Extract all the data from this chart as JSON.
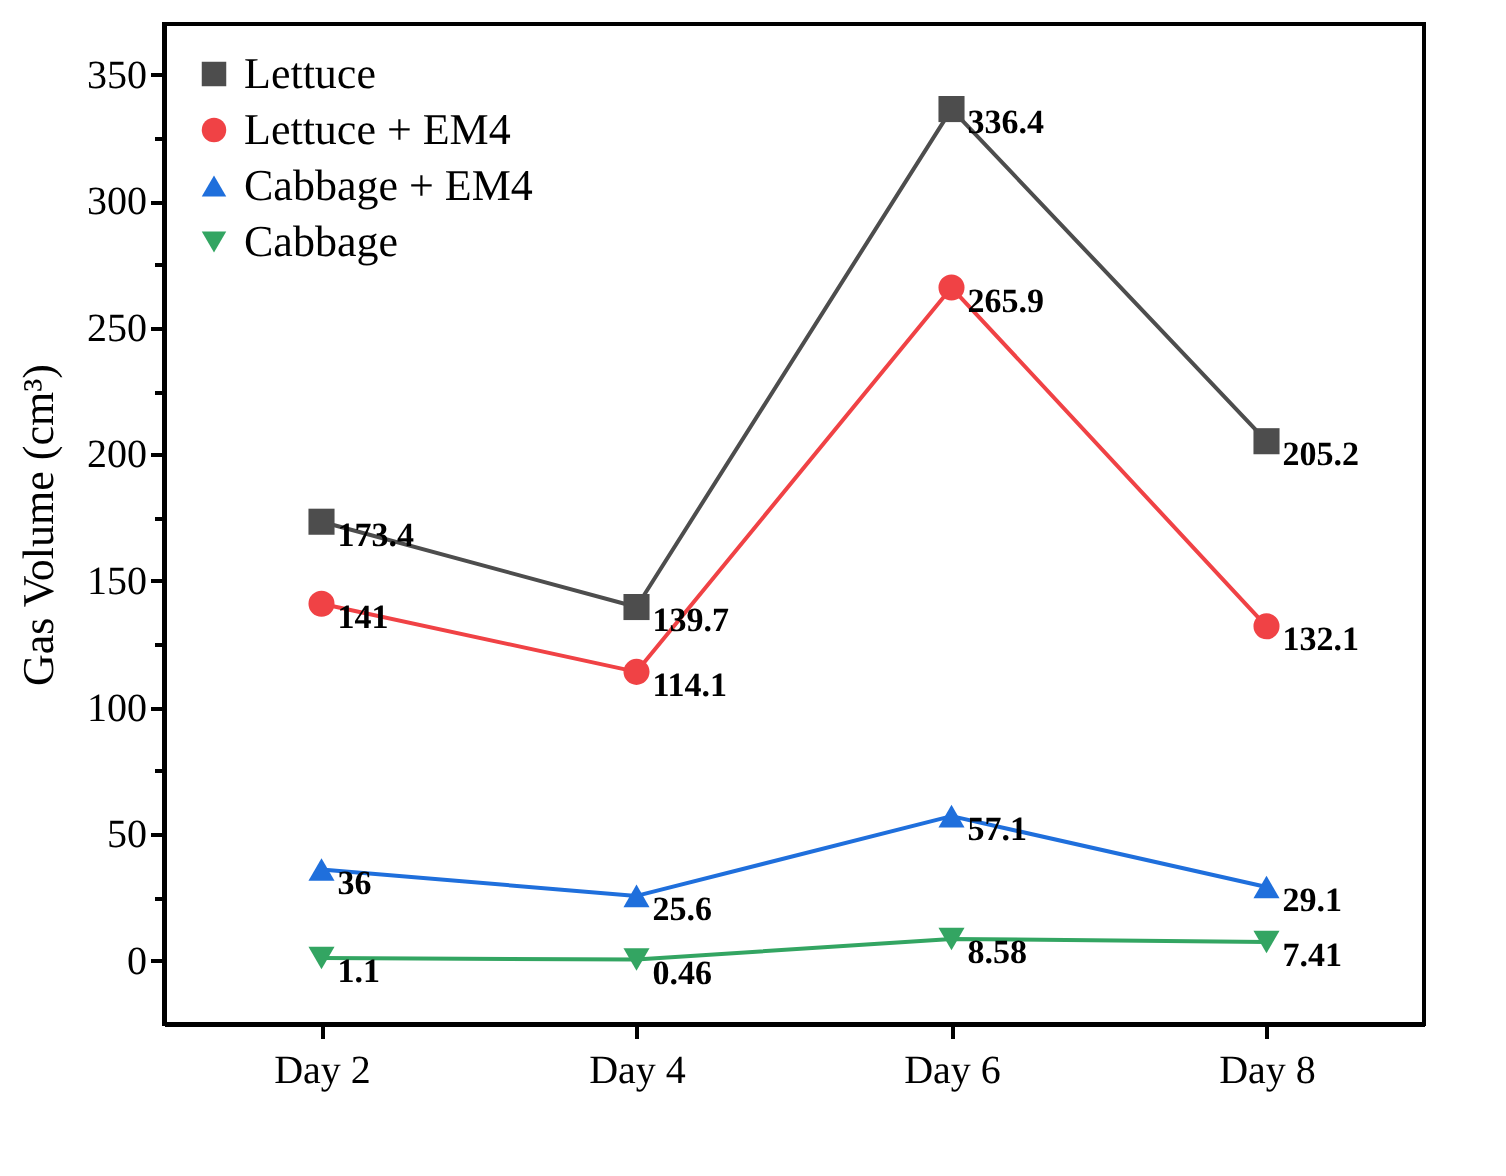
{
  "chart_data": {
    "type": "line",
    "ylabel": "Gas Volume (cm³)",
    "categories": [
      "Day 2",
      "Day 4",
      "Day 6",
      "Day 8"
    ],
    "series": [
      {
        "name": "Lettuce",
        "color": "#4d4d4d",
        "marker": "square",
        "values": [
          173.4,
          139.7,
          336.4,
          205.2
        ]
      },
      {
        "name": "Lettuce + EM4",
        "color": "#f04245",
        "marker": "circle",
        "values": [
          141,
          114.1,
          265.9,
          132.1
        ]
      },
      {
        "name": "Cabbage + EM4",
        "color": "#1f6fdc",
        "marker": "triangle",
        "values": [
          36,
          25.6,
          57.1,
          29.1
        ]
      },
      {
        "name": "Cabbage",
        "color": "#33a562",
        "marker": "triangle-down",
        "values": [
          1.1,
          0.46,
          8.58,
          7.41
        ]
      }
    ],
    "ylim": [
      -25,
      370
    ],
    "yticks": [
      0,
      {
        "value": 25,
        "label": null
      },
      50,
      {
        "value": 75,
        "label": null
      },
      100,
      {
        "value": 125,
        "label": null
      },
      150,
      {
        "value": 175,
        "label": null
      },
      200,
      {
        "value": 225,
        "label": null
      },
      250,
      {
        "value": 275,
        "label": null
      },
      300,
      {
        "value": 325,
        "label": null
      },
      350
    ],
    "data_labels": true,
    "grid": false,
    "legend": "top left",
    "line_style": "solid"
  }
}
